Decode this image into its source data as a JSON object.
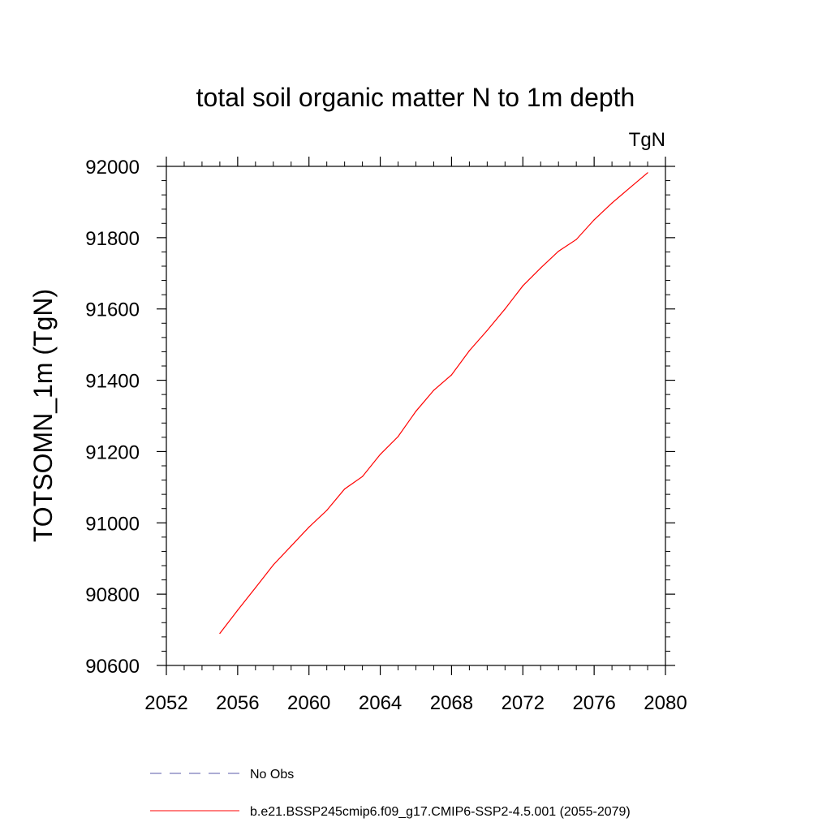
{
  "chart_data": {
    "type": "line",
    "title": "total soil organic matter N to 1m depth",
    "units_label": "TgN",
    "xlabel": "",
    "ylabel": "TOTSOMN_1m  (TgN)",
    "xlim": [
      2052,
      2080
    ],
    "ylim": [
      90600,
      92000
    ],
    "x_ticks": [
      2052,
      2056,
      2060,
      2064,
      2068,
      2072,
      2076,
      2080
    ],
    "y_ticks": [
      90600,
      90800,
      91000,
      91200,
      91400,
      91600,
      91800,
      92000
    ],
    "grid": false,
    "series": [
      {
        "name": "No Obs",
        "color": "#5a5aa8",
        "dash": "dashed",
        "x": [],
        "y": []
      },
      {
        "name": "b.e21.BSSP245cmip6.f09_g17.CMIP6-SSP2-4.5.001 (2055-2079)",
        "color": "#ff0000",
        "dash": "solid",
        "x": [
          2055,
          2056,
          2057,
          2058,
          2059,
          2060,
          2061,
          2062,
          2063,
          2064,
          2065,
          2066,
          2067,
          2068,
          2069,
          2070,
          2071,
          2072,
          2073,
          2074,
          2075,
          2076,
          2077,
          2078,
          2079
        ],
        "y": [
          90690,
          90755,
          90818,
          90882,
          90935,
          90988,
          91035,
          91095,
          91130,
          91192,
          91242,
          91313,
          91372,
          91415,
          91483,
          91540,
          91600,
          91665,
          91715,
          91762,
          91795,
          91850,
          91897,
          91940,
          91982
        ]
      }
    ],
    "legend": {
      "position": "bottom",
      "entries": [
        "No Obs",
        "b.e21.BSSP245cmip6.f09_g17.CMIP6-SSP2-4.5.001 (2055-2079)"
      ]
    }
  }
}
